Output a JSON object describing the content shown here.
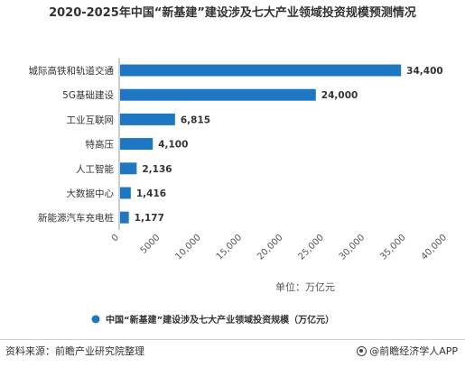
{
  "chart_data": {
    "type": "bar",
    "orientation": "horizontal",
    "title": "2020-2025年中国“新基建”建设涉及七大产业领域投资规模预测情况",
    "categories": [
      "城际高铁和轨道交通",
      "5G基础建设",
      "工业互联网",
      "特高压",
      "人工智能",
      "大数据中心",
      "新能源汽车充电桩"
    ],
    "series": [
      {
        "name": "中国“新基建”建设涉及七大产业领域投资规模（万亿元）",
        "values": [
          34400,
          24000,
          6815,
          4100,
          2136,
          1416,
          1177
        ]
      }
    ],
    "value_labels": [
      "34,400",
      "24,000",
      "6,815",
      "4,100",
      "2,136",
      "1,416",
      "1,177"
    ],
    "xlim": [
      0,
      40000
    ],
    "xticks": [
      0,
      5000,
      10000,
      15000,
      20000,
      25000,
      30000,
      35000,
      40000
    ],
    "xtick_labels": [
      "0",
      "5000",
      "10,000",
      "15,000",
      "20,000",
      "25,000",
      "30,000",
      "35,000",
      "40,000"
    ],
    "xlabel": "单位：万亿元",
    "grid": false,
    "legend_position": "bottom",
    "bar_color": "#1f77c4"
  },
  "footer": {
    "source": "资料来源：前瞻产业研究院整理",
    "brand": "@前瞻经济学人APP"
  }
}
